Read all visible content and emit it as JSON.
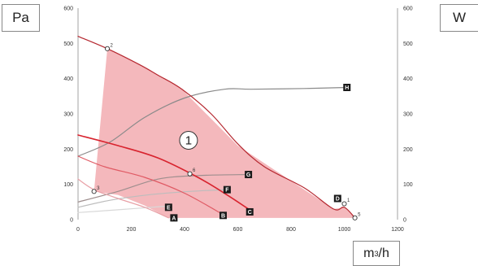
{
  "units": {
    "left": "Pa",
    "right": "W",
    "bottom_base": "m",
    "bottom_sup": "3",
    "bottom_tail": "/h"
  },
  "chart_data": {
    "type": "line",
    "x_axis": {
      "label": "m³/h",
      "range": [
        0,
        1200
      ],
      "ticks": [
        "0",
        "200",
        "400",
        "600",
        "800",
        "1000",
        "1200"
      ]
    },
    "y_left": {
      "label": "Pa",
      "range": [
        0,
        600
      ],
      "ticks": [
        "0",
        "100",
        "200",
        "300",
        "400",
        "500",
        "600"
      ]
    },
    "y_right": {
      "label": "W",
      "range": [
        0,
        600
      ],
      "ticks": [
        "0",
        "100",
        "200",
        "300",
        "400",
        "500",
        "600"
      ]
    },
    "zone": {
      "label": "1",
      "color": "#f4b8bc",
      "polygon": [
        [
          60,
          80
        ],
        [
          110,
          485
        ],
        [
          230,
          440
        ],
        [
          300,
          410
        ],
        [
          390,
          370
        ],
        [
          600,
          210
        ],
        [
          780,
          120
        ],
        [
          960,
          30
        ],
        [
          1000,
          35
        ],
        [
          1040,
          5
        ],
        [
          340,
          5
        ],
        [
          250,
          40
        ],
        [
          150,
          70
        ]
      ]
    },
    "series": [
      {
        "name": "A",
        "color": "#e8a0a6",
        "width": 1.2,
        "kind": "pressure",
        "points": [
          [
            0,
            115
          ],
          [
            60,
            85
          ],
          [
            150,
            60
          ],
          [
            250,
            35
          ],
          [
            340,
            5
          ]
        ],
        "label_at": [
          360,
          5
        ]
      },
      {
        "name": "B",
        "color": "#e05a64",
        "width": 1.2,
        "kind": "pressure",
        "points": [
          [
            0,
            180
          ],
          [
            100,
            150
          ],
          [
            250,
            120
          ],
          [
            400,
            75
          ],
          [
            550,
            12
          ]
        ],
        "label_at": [
          545,
          12
        ]
      },
      {
        "name": "C",
        "color": "#d8232e",
        "width": 1.6,
        "kind": "pressure",
        "points": [
          [
            0,
            240
          ],
          [
            150,
            210
          ],
          [
            300,
            175
          ],
          [
            450,
            120
          ],
          [
            560,
            70
          ],
          [
            650,
            25
          ]
        ],
        "label_at": [
          645,
          22
        ]
      },
      {
        "name": "D",
        "color": "#b5272f",
        "width": 1.2,
        "kind": "pressure",
        "points": [
          [
            0,
            520
          ],
          [
            110,
            485
          ],
          [
            230,
            440
          ],
          [
            300,
            410
          ],
          [
            390,
            370
          ],
          [
            500,
            300
          ],
          [
            600,
            215
          ],
          [
            700,
            150
          ],
          [
            850,
            90
          ],
          [
            960,
            30
          ],
          [
            1000,
            35
          ],
          [
            1040,
            5
          ]
        ],
        "label_at": [
          975,
          60
        ]
      },
      {
        "name": "E",
        "color": "#d8d8d8",
        "width": 1.2,
        "kind": "power",
        "points": [
          [
            0,
            20
          ],
          [
            150,
            28
          ],
          [
            330,
            38
          ]
        ],
        "label_at": [
          340,
          35
        ]
      },
      {
        "name": "F",
        "color": "#bdbdbd",
        "width": 1.2,
        "kind": "power",
        "points": [
          [
            0,
            35
          ],
          [
            120,
            55
          ],
          [
            260,
            70
          ],
          [
            420,
            80
          ],
          [
            560,
            85
          ]
        ],
        "label_at": [
          560,
          85
        ]
      },
      {
        "name": "G",
        "color": "#9e8e8e",
        "width": 1.2,
        "kind": "power",
        "points": [
          [
            0,
            50
          ],
          [
            150,
            80
          ],
          [
            300,
            115
          ],
          [
            450,
            125
          ],
          [
            640,
            128
          ]
        ],
        "label_at": [
          640,
          128
        ]
      },
      {
        "name": "H",
        "color": "#8a8a8a",
        "width": 1.2,
        "kind": "power",
        "points": [
          [
            0,
            180
          ],
          [
            120,
            220
          ],
          [
            250,
            290
          ],
          [
            400,
            345
          ],
          [
            550,
            370
          ],
          [
            650,
            370
          ],
          [
            850,
            372
          ],
          [
            1010,
            375
          ]
        ],
        "label_at": [
          1010,
          375
        ]
      }
    ],
    "operating_points": [
      {
        "label": "1",
        "x": 1000,
        "y": 45
      },
      {
        "label": "2",
        "x": 110,
        "y": 485
      },
      {
        "label": "3",
        "x": 60,
        "y": 80
      },
      {
        "label": "5",
        "x": 1040,
        "y": 5
      },
      {
        "label": "6",
        "x": 420,
        "y": 130
      }
    ],
    "annotations": [
      {
        "text": "1",
        "x": 415,
        "y": 225,
        "shape": "circle"
      }
    ]
  }
}
